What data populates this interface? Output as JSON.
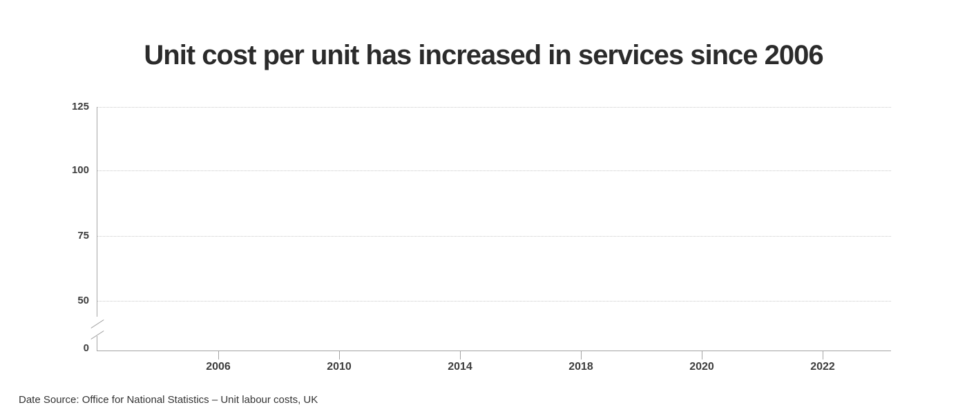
{
  "page": {
    "title": "Unit cost per unit has increased in services since 2006",
    "footer": "Date Source: Office for National Statistics – Unit labour costs, UK"
  },
  "chart_data": {
    "type": "line",
    "title": "Unit cost per unit has increased in services since 2006",
    "xlabel": "",
    "ylabel": "",
    "x_tick_labels": [
      "2006",
      "2010",
      "2014",
      "2018",
      "2020",
      "2022"
    ],
    "y_tick_labels": [
      "125",
      "100",
      "75",
      "50",
      "0"
    ],
    "ylim": [
      0,
      128
    ],
    "y_axis_break": {
      "between": [
        0,
        50
      ],
      "style": "double-slash"
    },
    "grid": "horizontal dotted at 50, 75, 100, 125",
    "legend": "none",
    "series": [],
    "note_visible_data": "plot area contains no plotted series"
  },
  "colors": {
    "background": "#ffffff",
    "title": "#2b2b2b",
    "tick_label": "#3d3d3d",
    "axis_line": "#a3a3a3",
    "gridline": "#c8c8c8",
    "footer": "#333333"
  }
}
